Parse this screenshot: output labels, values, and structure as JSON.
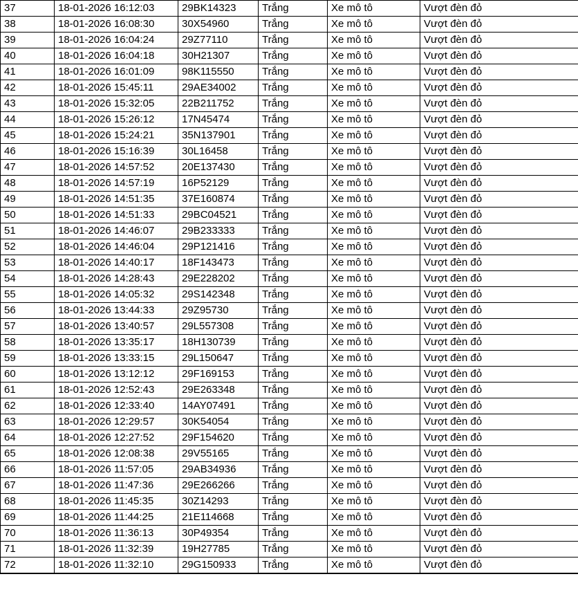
{
  "theme": {
    "background_color": "#ffffff",
    "border_color": "#000000",
    "text_color": "#000000"
  },
  "table": {
    "rows": [
      {
        "index": "37",
        "datetime": "18-01-2026 16:12:03",
        "plate": "29BK14323",
        "color": "Trắng",
        "vehicle_type": "Xe mô tô",
        "violation": "Vượt đèn đỏ"
      },
      {
        "index": "38",
        "datetime": "18-01-2026 16:08:30",
        "plate": "30X54960",
        "color": "Trắng",
        "vehicle_type": "Xe mô tô",
        "violation": "Vượt đèn đỏ"
      },
      {
        "index": "39",
        "datetime": "18-01-2026 16:04:24",
        "plate": "29Z77110",
        "color": "Trắng",
        "vehicle_type": "Xe mô tô",
        "violation": "Vượt đèn đỏ"
      },
      {
        "index": "40",
        "datetime": "18-01-2026 16:04:18",
        "plate": "30H21307",
        "color": "Trắng",
        "vehicle_type": "Xe mô tô",
        "violation": "Vượt đèn đỏ"
      },
      {
        "index": "41",
        "datetime": "18-01-2026 16:01:09",
        "plate": "98K115550",
        "color": "Trắng",
        "vehicle_type": "Xe mô tô",
        "violation": "Vượt đèn đỏ"
      },
      {
        "index": "42",
        "datetime": "18-01-2026 15:45:11",
        "plate": "29AE34002",
        "color": "Trắng",
        "vehicle_type": "Xe mô tô",
        "violation": "Vượt đèn đỏ"
      },
      {
        "index": "43",
        "datetime": "18-01-2026 15:32:05",
        "plate": "22B211752",
        "color": "Trắng",
        "vehicle_type": "Xe mô tô",
        "violation": "Vượt đèn đỏ"
      },
      {
        "index": "44",
        "datetime": "18-01-2026 15:26:12",
        "plate": "17N45474",
        "color": "Trắng",
        "vehicle_type": "Xe mô tô",
        "violation": "Vượt đèn đỏ"
      },
      {
        "index": "45",
        "datetime": "18-01-2026 15:24:21",
        "plate": "35N137901",
        "color": "Trắng",
        "vehicle_type": "Xe mô tô",
        "violation": "Vượt đèn đỏ"
      },
      {
        "index": "46",
        "datetime": "18-01-2026 15:16:39",
        "plate": "30L16458",
        "color": "Trắng",
        "vehicle_type": "Xe mô tô",
        "violation": "Vượt đèn đỏ"
      },
      {
        "index": "47",
        "datetime": "18-01-2026 14:57:52",
        "plate": "20E137430",
        "color": "Trắng",
        "vehicle_type": "Xe mô tô",
        "violation": "Vượt đèn đỏ"
      },
      {
        "index": "48",
        "datetime": "18-01-2026 14:57:19",
        "plate": "16P52129",
        "color": "Trắng",
        "vehicle_type": "Xe mô tô",
        "violation": "Vượt đèn đỏ"
      },
      {
        "index": "49",
        "datetime": "18-01-2026 14:51:35",
        "plate": "37E160874",
        "color": "Trắng",
        "vehicle_type": "Xe mô tô",
        "violation": "Vượt đèn đỏ"
      },
      {
        "index": "50",
        "datetime": "18-01-2026 14:51:33",
        "plate": "29BC04521",
        "color": "Trắng",
        "vehicle_type": "Xe mô tô",
        "violation": "Vượt đèn đỏ"
      },
      {
        "index": "51",
        "datetime": "18-01-2026 14:46:07",
        "plate": "29B233333",
        "color": "Trắng",
        "vehicle_type": "Xe mô tô",
        "violation": "Vượt đèn đỏ"
      },
      {
        "index": "52",
        "datetime": "18-01-2026 14:46:04",
        "plate": "29P121416",
        "color": "Trắng",
        "vehicle_type": "Xe mô tô",
        "violation": "Vượt đèn đỏ"
      },
      {
        "index": "53",
        "datetime": "18-01-2026 14:40:17",
        "plate": "18F143473",
        "color": "Trắng",
        "vehicle_type": "Xe mô tô",
        "violation": "Vượt đèn đỏ"
      },
      {
        "index": "54",
        "datetime": "18-01-2026 14:28:43",
        "plate": "29E228202",
        "color": "Trắng",
        "vehicle_type": "Xe mô tô",
        "violation": "Vượt đèn đỏ"
      },
      {
        "index": "55",
        "datetime": "18-01-2026 14:05:32",
        "plate": "29S142348",
        "color": "Trắng",
        "vehicle_type": "Xe mô tô",
        "violation": "Vượt đèn đỏ"
      },
      {
        "index": "56",
        "datetime": "18-01-2026 13:44:33",
        "plate": "29Z95730",
        "color": "Trắng",
        "vehicle_type": "Xe mô tô",
        "violation": "Vượt đèn đỏ"
      },
      {
        "index": "57",
        "datetime": "18-01-2026 13:40:57",
        "plate": "29L557308",
        "color": "Trắng",
        "vehicle_type": "Xe mô tô",
        "violation": "Vượt đèn đỏ"
      },
      {
        "index": "58",
        "datetime": "18-01-2026 13:35:17",
        "plate": "18H130739",
        "color": "Trắng",
        "vehicle_type": "Xe mô tô",
        "violation": "Vượt đèn đỏ"
      },
      {
        "index": "59",
        "datetime": "18-01-2026 13:33:15",
        "plate": "29L150647",
        "color": "Trắng",
        "vehicle_type": "Xe mô tô",
        "violation": "Vượt đèn đỏ"
      },
      {
        "index": "60",
        "datetime": "18-01-2026 13:12:12",
        "plate": "29F169153",
        "color": "Trắng",
        "vehicle_type": "Xe mô tô",
        "violation": "Vượt đèn đỏ"
      },
      {
        "index": "61",
        "datetime": "18-01-2026 12:52:43",
        "plate": "29E263348",
        "color": "Trắng",
        "vehicle_type": "Xe mô tô",
        "violation": "Vượt đèn đỏ"
      },
      {
        "index": "62",
        "datetime": "18-01-2026 12:33:40",
        "plate": "14AY07491",
        "color": "Trắng",
        "vehicle_type": "Xe mô tô",
        "violation": "Vượt đèn đỏ"
      },
      {
        "index": "63",
        "datetime": "18-01-2026 12:29:57",
        "plate": "30K54054",
        "color": "Trắng",
        "vehicle_type": "Xe mô tô",
        "violation": "Vượt đèn đỏ"
      },
      {
        "index": "64",
        "datetime": "18-01-2026 12:27:52",
        "plate": "29F154620",
        "color": "Trắng",
        "vehicle_type": "Xe mô tô",
        "violation": "Vượt đèn đỏ"
      },
      {
        "index": "65",
        "datetime": "18-01-2026 12:08:38",
        "plate": "29V55165",
        "color": "Trắng",
        "vehicle_type": "Xe mô tô",
        "violation": "Vượt đèn đỏ"
      },
      {
        "index": "66",
        "datetime": "18-01-2026 11:57:05",
        "plate": "29AB34936",
        "color": "Trắng",
        "vehicle_type": "Xe mô tô",
        "violation": "Vượt đèn đỏ"
      },
      {
        "index": "67",
        "datetime": "18-01-2026 11:47:36",
        "plate": "29E266266",
        "color": "Trắng",
        "vehicle_type": "Xe mô tô",
        "violation": "Vượt đèn đỏ"
      },
      {
        "index": "68",
        "datetime": "18-01-2026 11:45:35",
        "plate": "30Z14293",
        "color": "Trắng",
        "vehicle_type": "Xe mô tô",
        "violation": "Vượt đèn đỏ"
      },
      {
        "index": "69",
        "datetime": "18-01-2026 11:44:25",
        "plate": "21E114668",
        "color": "Trắng",
        "vehicle_type": "Xe mô tô",
        "violation": "Vượt đèn đỏ"
      },
      {
        "index": "70",
        "datetime": "18-01-2026 11:36:13",
        "plate": "30P49354",
        "color": "Trắng",
        "vehicle_type": "Xe mô tô",
        "violation": "Vượt đèn đỏ"
      },
      {
        "index": "71",
        "datetime": "18-01-2026 11:32:39",
        "plate": "19H27785",
        "color": "Trắng",
        "vehicle_type": "Xe mô tô",
        "violation": "Vượt đèn đỏ"
      },
      {
        "index": "72",
        "datetime": "18-01-2026 11:32:10",
        "plate": "29G150933",
        "color": "Trắng",
        "vehicle_type": "Xe mô tô",
        "violation": "Vượt đèn đỏ"
      }
    ]
  }
}
